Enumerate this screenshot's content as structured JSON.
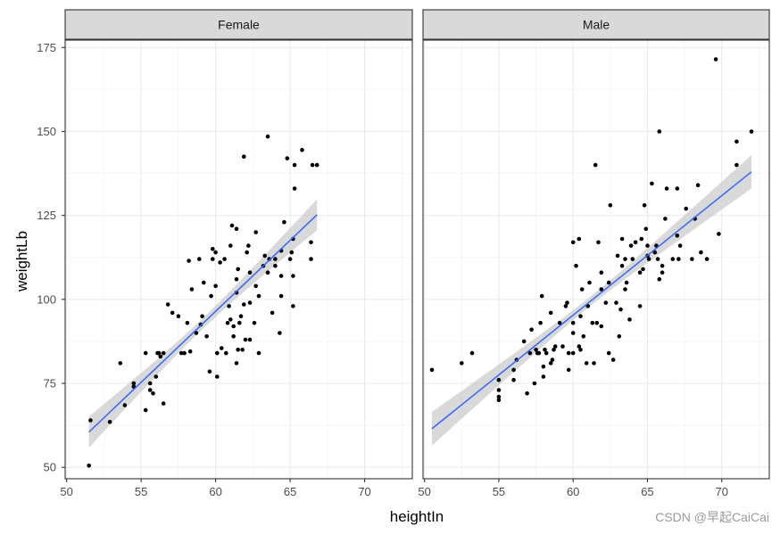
{
  "chart_data": {
    "type": "scatter",
    "xlabel": "heightIn",
    "ylabel": "weightLb",
    "xlim": [
      49.9,
      73.2
    ],
    "ylim": [
      46.6,
      177.2
    ],
    "x_ticks": [
      50,
      55,
      60,
      65,
      70
    ],
    "y_ticks": [
      50,
      75,
      100,
      125,
      150,
      175
    ],
    "grid": true,
    "smooth": {
      "method": "lm",
      "color": "#3366ff",
      "band_color": "#cccccc"
    },
    "facets": [
      {
        "label": "Female",
        "fit": {
          "x_start": 51.5,
          "y_start": 60.5,
          "x_end": 66.8,
          "y_end": 125.2
        },
        "band_halfwidth": {
          "ends": 4.6,
          "middle": 1.6
        },
        "points": [
          [
            51.5,
            50.5
          ],
          [
            51.6,
            64
          ],
          [
            52.9,
            63.5
          ],
          [
            53.6,
            81
          ],
          [
            53.9,
            68.5
          ],
          [
            54.5,
            75
          ],
          [
            54.5,
            74
          ],
          [
            55.3,
            84
          ],
          [
            55.3,
            67
          ],
          [
            55.6,
            75
          ],
          [
            55.6,
            73
          ],
          [
            55.8,
            72
          ],
          [
            56.0,
            77
          ],
          [
            56.1,
            84
          ],
          [
            56.2,
            84
          ],
          [
            56.3,
            83
          ],
          [
            56.5,
            84
          ],
          [
            56.5,
            69
          ],
          [
            56.8,
            98.5
          ],
          [
            57.1,
            96
          ],
          [
            57.5,
            95
          ],
          [
            57.7,
            84
          ],
          [
            57.9,
            84
          ],
          [
            58.1,
            93
          ],
          [
            58.2,
            111.5
          ],
          [
            58.3,
            84.5
          ],
          [
            58.4,
            103
          ],
          [
            58.7,
            90
          ],
          [
            58.9,
            112
          ],
          [
            59.0,
            92.5
          ],
          [
            59.1,
            95
          ],
          [
            59.2,
            105
          ],
          [
            59.4,
            89
          ],
          [
            59.6,
            78.5
          ],
          [
            59.7,
            101
          ],
          [
            59.8,
            112
          ],
          [
            59.8,
            115
          ],
          [
            60.0,
            114
          ],
          [
            60.0,
            104
          ],
          [
            60.1,
            84
          ],
          [
            60.1,
            77
          ],
          [
            60.3,
            111
          ],
          [
            60.4,
            85.5
          ],
          [
            60.6,
            112
          ],
          [
            60.7,
            84
          ],
          [
            60.8,
            93
          ],
          [
            60.9,
            98
          ],
          [
            61.0,
            94
          ],
          [
            61.0,
            116
          ],
          [
            61.1,
            122
          ],
          [
            61.2,
            92
          ],
          [
            61.2,
            89
          ],
          [
            61.4,
            102
          ],
          [
            61.4,
            106
          ],
          [
            61.5,
            109
          ],
          [
            61.4,
            121
          ],
          [
            61.4,
            81
          ],
          [
            61.5,
            85
          ],
          [
            61.6,
            93
          ],
          [
            61.7,
            95
          ],
          [
            61.8,
            85
          ],
          [
            61.9,
            98.5
          ],
          [
            61.9,
            142.5
          ],
          [
            62.0,
            88
          ],
          [
            62.1,
            114
          ],
          [
            62.2,
            116
          ],
          [
            62.3,
            108
          ],
          [
            62.3,
            99
          ],
          [
            62.3,
            88
          ],
          [
            62.6,
            93
          ],
          [
            62.7,
            104
          ],
          [
            62.7,
            120
          ],
          [
            62.9,
            84
          ],
          [
            62.9,
            101
          ],
          [
            63.2,
            110
          ],
          [
            63.3,
            113
          ],
          [
            63.5,
            108
          ],
          [
            63.5,
            108
          ],
          [
            63.5,
            148.5
          ],
          [
            63.6,
            112
          ],
          [
            63.8,
            96
          ],
          [
            64.0,
            110
          ],
          [
            64.0,
            112
          ],
          [
            64.3,
            90
          ],
          [
            64.4,
            101
          ],
          [
            64.4,
            114.5
          ],
          [
            64.4,
            107
          ],
          [
            64.6,
            123
          ],
          [
            64.8,
            142
          ],
          [
            65.0,
            112
          ],
          [
            65.1,
            114
          ],
          [
            65.2,
            118
          ],
          [
            65.2,
            98
          ],
          [
            65.2,
            107
          ],
          [
            65.3,
            133
          ],
          [
            65.3,
            140
          ],
          [
            65.8,
            144.5
          ],
          [
            66.4,
            117
          ],
          [
            66.4,
            112
          ],
          [
            66.5,
            140
          ],
          [
            66.8,
            140
          ]
        ]
      },
      {
        "label": "Male",
        "fit": {
          "x_start": 50.5,
          "y_start": 61.5,
          "x_end": 72.0,
          "y_end": 138.0
        },
        "band_halfwidth": {
          "ends": 5,
          "middle": 1.4
        },
        "points": [
          [
            50.5,
            79
          ],
          [
            52.5,
            81
          ],
          [
            53.2,
            84
          ],
          [
            55.0,
            73
          ],
          [
            55.0,
            71
          ],
          [
            55.0,
            76
          ],
          [
            55.0,
            70
          ],
          [
            56.0,
            76
          ],
          [
            56.0,
            79
          ],
          [
            56.2,
            82
          ],
          [
            56.7,
            87.5
          ],
          [
            56.9,
            72
          ],
          [
            57.1,
            84
          ],
          [
            57.2,
            91
          ],
          [
            57.4,
            75
          ],
          [
            57.5,
            85
          ],
          [
            57.6,
            84
          ],
          [
            57.7,
            84
          ],
          [
            57.8,
            93
          ],
          [
            57.9,
            101
          ],
          [
            58.0,
            77
          ],
          [
            58.0,
            80
          ],
          [
            58.1,
            85
          ],
          [
            58.2,
            84
          ],
          [
            58.5,
            81
          ],
          [
            58.5,
            96
          ],
          [
            58.6,
            82
          ],
          [
            58.7,
            85
          ],
          [
            58.8,
            86
          ],
          [
            59.1,
            93
          ],
          [
            59.3,
            86
          ],
          [
            59.5,
            98
          ],
          [
            59.6,
            99
          ],
          [
            59.7,
            79
          ],
          [
            59.7,
            84
          ],
          [
            60.0,
            93
          ],
          [
            60.0,
            84
          ],
          [
            60.0,
            90
          ],
          [
            60.0,
            117
          ],
          [
            60.2,
            110
          ],
          [
            60.4,
            118
          ],
          [
            60.4,
            86
          ],
          [
            60.5,
            95
          ],
          [
            60.5,
            85
          ],
          [
            60.6,
            103
          ],
          [
            60.7,
            89
          ],
          [
            60.9,
            81
          ],
          [
            61.0,
            98
          ],
          [
            61.1,
            105
          ],
          [
            61.3,
            93
          ],
          [
            61.4,
            81
          ],
          [
            61.5,
            140
          ],
          [
            61.6,
            93
          ],
          [
            61.7,
            117
          ],
          [
            61.9,
            108
          ],
          [
            61.9,
            103
          ],
          [
            61.9,
            92
          ],
          [
            62.2,
            99
          ],
          [
            62.4,
            105
          ],
          [
            62.4,
            84
          ],
          [
            62.5,
            128
          ],
          [
            62.7,
            82
          ],
          [
            62.9,
            99
          ],
          [
            63.0,
            113
          ],
          [
            63.1,
            89
          ],
          [
            63.2,
            97
          ],
          [
            63.3,
            110
          ],
          [
            63.3,
            118
          ],
          [
            63.5,
            103
          ],
          [
            63.5,
            112
          ],
          [
            63.6,
            105
          ],
          [
            63.8,
            94
          ],
          [
            63.9,
            116
          ],
          [
            64.0,
            112
          ],
          [
            64.2,
            117
          ],
          [
            64.5,
            108
          ],
          [
            64.5,
            98
          ],
          [
            64.6,
            118
          ],
          [
            64.7,
            109
          ],
          [
            64.8,
            128
          ],
          [
            64.9,
            121
          ],
          [
            65.0,
            113
          ],
          [
            65.0,
            116
          ],
          [
            65.1,
            112
          ],
          [
            65.3,
            134.5
          ],
          [
            65.5,
            114
          ],
          [
            65.6,
            116
          ],
          [
            65.7,
            112
          ],
          [
            65.8,
            150
          ],
          [
            65.8,
            106
          ],
          [
            66.0,
            110
          ],
          [
            66.0,
            108
          ],
          [
            66.2,
            124
          ],
          [
            66.3,
            133
          ],
          [
            66.7,
            112
          ],
          [
            67.0,
            119
          ],
          [
            67.0,
            133
          ],
          [
            67.1,
            112
          ],
          [
            67.2,
            116
          ],
          [
            67.6,
            127
          ],
          [
            68.0,
            112
          ],
          [
            68.2,
            124
          ],
          [
            68.4,
            134
          ],
          [
            68.6,
            114
          ],
          [
            69.0,
            112
          ],
          [
            69.6,
            171.5
          ],
          [
            69.8,
            119.5
          ],
          [
            71.0,
            140
          ],
          [
            71.0,
            147
          ],
          [
            72.0,
            150
          ]
        ]
      }
    ]
  },
  "watermark": "CSDN @早起CaiCai"
}
